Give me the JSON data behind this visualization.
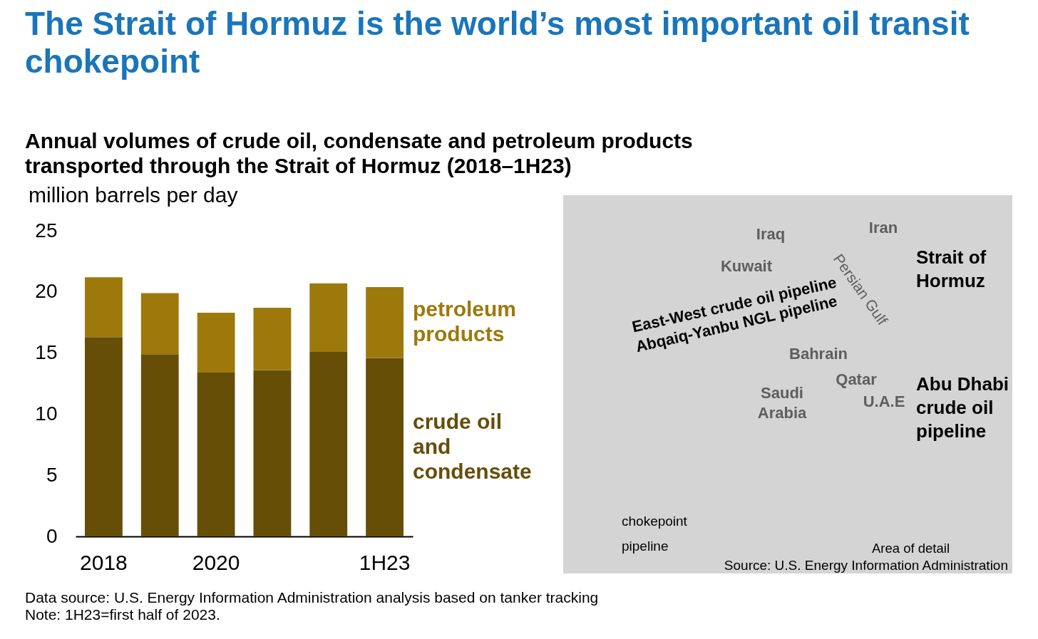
{
  "chart_data": [
    {
      "type": "bar",
      "title": "The Strait of Hormuz is the world’s most important oil transit chokepoint",
      "subtitle": "Annual volumes of crude oil, condensate and petroleum products transported through the Strait of Hormuz (2018–1H23)",
      "ylabel": "million barrels per day",
      "categories": [
        "2018",
        null,
        "2020",
        null,
        null,
        "1H23"
      ],
      "stacked": true,
      "series": [
        {
          "name": "crude oil and condensate",
          "color": "#664e07",
          "values": [
            16.3,
            14.9,
            13.4,
            13.6,
            15.1,
            14.6
          ]
        },
        {
          "name": "petroleum products",
          "color": "#9d790c",
          "values": [
            4.9,
            5.0,
            4.9,
            5.1,
            5.6,
            5.8
          ]
        }
      ],
      "ylim": [
        0,
        25
      ],
      "yticks": [
        0,
        5,
        10,
        15,
        20,
        25
      ],
      "grid": false,
      "legend": false,
      "annotations": [
        "Data source: U.S. Energy Information Administration analysis based on tanker tracking",
        "Note: 1H23=first half of 2023."
      ]
    },
    {
      "type": "other",
      "annotations": [
        "Iraq",
        "Iran",
        "Kuwait",
        "Persian Gulf",
        "Strait of Hormuz",
        "East-West crude oil pipeline",
        "Abqaiq-Yanbu NGL pipeline",
        "Bahrain",
        "Qatar",
        "Saudi Arabia",
        "U.A.E",
        "Abu Dhabi crude oil pipeline",
        "chokepoint",
        "pipeline",
        "Area of detail",
        "Source: U.S. Energy Information Administration"
      ]
    }
  ]
}
